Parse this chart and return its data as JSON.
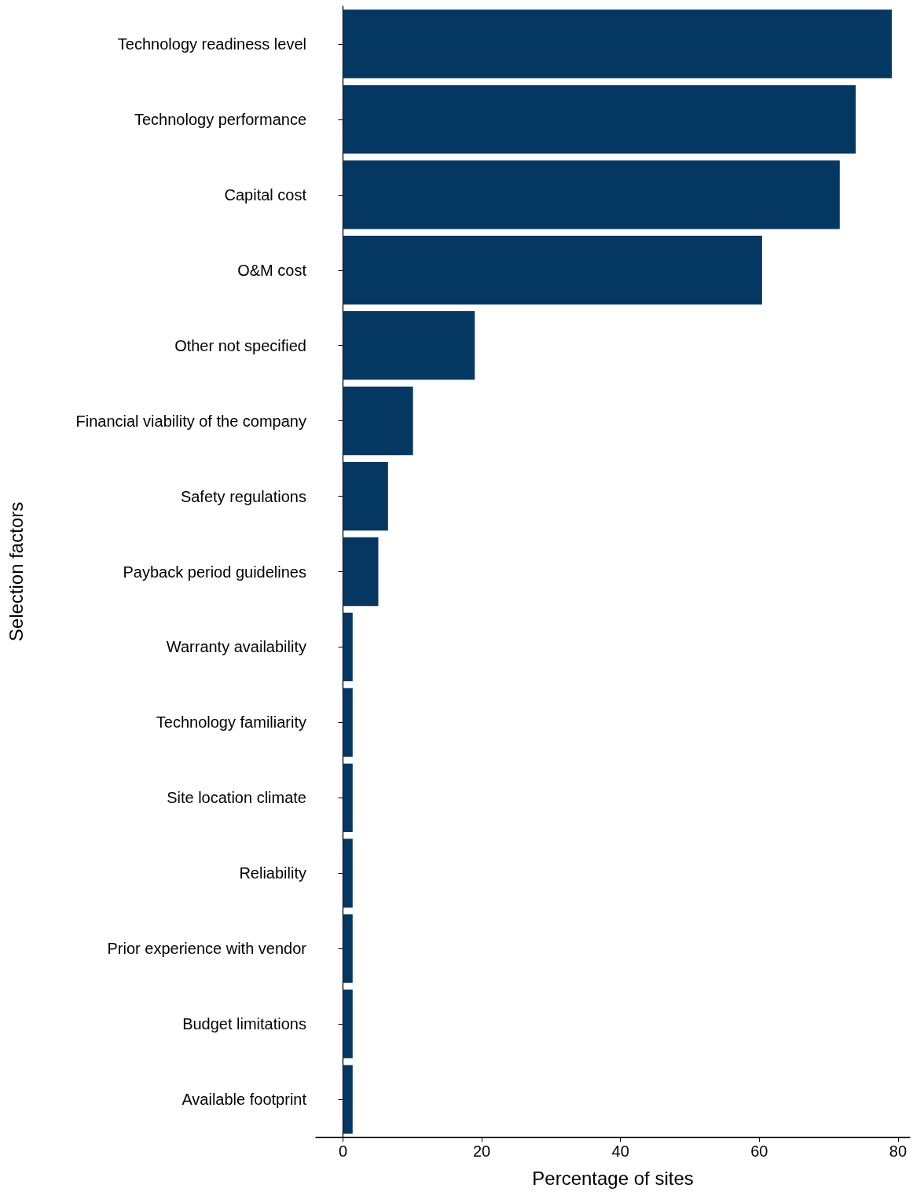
{
  "chart_data": {
    "type": "bar",
    "orientation": "horizontal",
    "xlabel": "Percentage of sites",
    "ylabel": "Selection factors",
    "categories": [
      "Technology readiness level",
      "Technology performance",
      "Capital cost",
      "O&M cost",
      "Other not specified",
      "Financial viability of the company",
      "Safety regulations",
      "Payback period guidelines",
      "Warranty availability",
      "Technology familiarity",
      "Site location climate",
      "Reliability",
      "Prior experience with vendor",
      "Budget limitations",
      "Available footprint"
    ],
    "values": [
      79.1,
      73.9,
      71.6,
      60.4,
      19.0,
      10.1,
      6.5,
      5.1,
      1.4,
      1.4,
      1.4,
      1.4,
      1.4,
      1.4,
      1.4
    ],
    "color": "#053763",
    "xlim": [
      -3.9,
      81.7
    ],
    "xticks": [
      0,
      20,
      40,
      60,
      80
    ]
  }
}
